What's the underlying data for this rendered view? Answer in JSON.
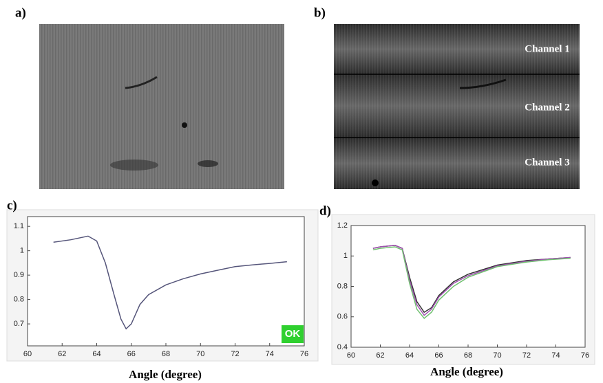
{
  "panels": {
    "a": {
      "label": "a)"
    },
    "b": {
      "label": "b)",
      "channels": [
        "Channel 1",
        "Channel 2",
        "Channel 3"
      ]
    }
  },
  "chart_data": [
    {
      "type": "line",
      "panel_label": "c)",
      "x_label": "Angle (degree)",
      "annotation": "OK",
      "x": [
        61.5,
        62.5,
        63.5,
        64,
        64.5,
        65,
        65.4,
        65.7,
        66,
        66.5,
        67,
        68,
        69,
        70,
        71,
        72,
        73,
        74,
        75
      ],
      "series": [
        {
          "color": "#55557a",
          "values": [
            1.035,
            1.045,
            1.06,
            1.04,
            0.95,
            0.82,
            0.72,
            0.68,
            0.7,
            0.78,
            0.82,
            0.86,
            0.885,
            0.905,
            0.92,
            0.935,
            0.942,
            0.948,
            0.955
          ]
        }
      ],
      "xlim": [
        60,
        76
      ],
      "ylim": [
        0.61,
        1.14
      ],
      "xticks": [
        60,
        62,
        64,
        66,
        68,
        70,
        72,
        74,
        76
      ],
      "yticks": [
        0.7,
        0.8,
        0.9,
        1,
        1.1
      ]
    },
    {
      "type": "line",
      "panel_label": "d)",
      "x_label": "Angle (degree)",
      "x": [
        61.5,
        62,
        63,
        63.5,
        64,
        64.5,
        65,
        65.5,
        66,
        67,
        68,
        70,
        72,
        73.5,
        75
      ],
      "series": [
        {
          "color": "#333333",
          "values": [
            1.05,
            1.06,
            1.07,
            1.05,
            0.86,
            0.7,
            0.63,
            0.66,
            0.74,
            0.83,
            0.88,
            0.94,
            0.97,
            0.98,
            0.99
          ]
        },
        {
          "color": "#a050b0",
          "values": [
            1.05,
            1.06,
            1.07,
            1.05,
            0.84,
            0.68,
            0.61,
            0.65,
            0.73,
            0.82,
            0.87,
            0.935,
            0.965,
            0.98,
            0.99
          ]
        },
        {
          "color": "#70c070",
          "values": [
            1.04,
            1.05,
            1.06,
            1.04,
            0.82,
            0.65,
            0.59,
            0.63,
            0.71,
            0.8,
            0.86,
            0.93,
            0.96,
            0.975,
            0.985
          ]
        }
      ],
      "xlim": [
        60,
        76
      ],
      "ylim": [
        0.4,
        1.2
      ],
      "xticks": [
        60,
        62,
        64,
        66,
        68,
        70,
        72,
        74,
        76
      ],
      "yticks": [
        0.4,
        0.6,
        0.8,
        1,
        1.2
      ]
    }
  ]
}
